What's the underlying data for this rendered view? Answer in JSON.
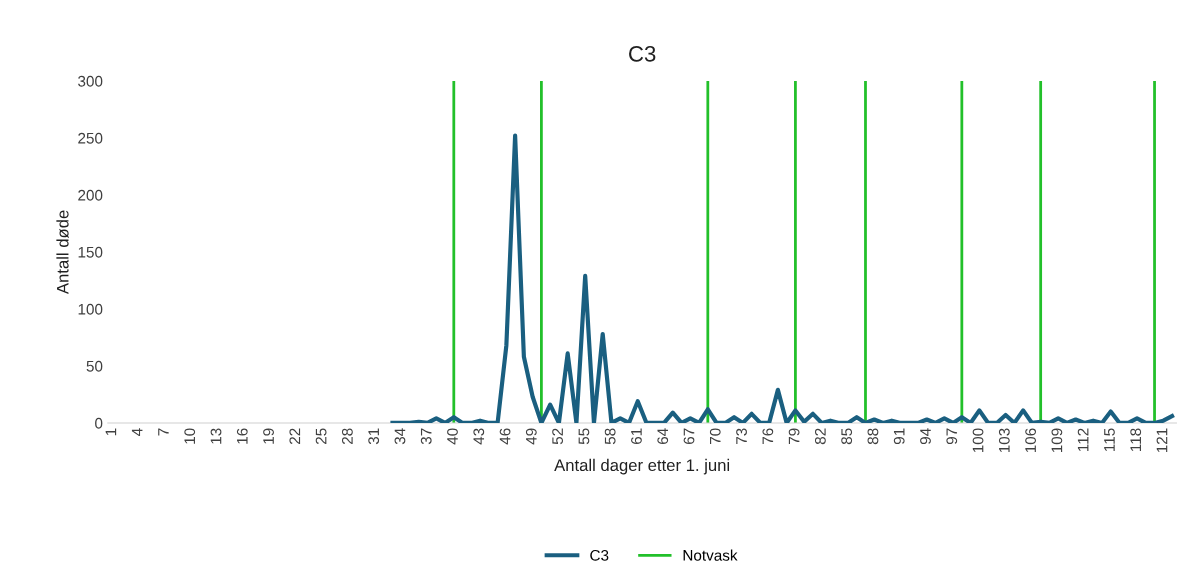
{
  "chart_data": {
    "type": "line",
    "title": "C3",
    "xlabel": "Antall dager etter 1. juni",
    "ylabel": "Antall døde",
    "xlim": [
      0.5,
      122.5
    ],
    "xticks": [
      1,
      4,
      7,
      10,
      13,
      16,
      19,
      22,
      25,
      28,
      31,
      34,
      37,
      40,
      43,
      46,
      49,
      52,
      55,
      58,
      61,
      64,
      67,
      70,
      73,
      76,
      79,
      82,
      85,
      88,
      91,
      94,
      97,
      100,
      103,
      106,
      109,
      112,
      115,
      118,
      121
    ],
    "ylim": [
      0,
      300
    ],
    "yticks": [
      0,
      50,
      100,
      150,
      200,
      250,
      300
    ],
    "series": [
      {
        "name": "C3",
        "color": "#1a5f80",
        "x": [
          33,
          34,
          35,
          36,
          37,
          38,
          39,
          40,
          41,
          42,
          43,
          44,
          45,
          46,
          47,
          48,
          49,
          50,
          51,
          52,
          53,
          54,
          55,
          56,
          57,
          58,
          59,
          60,
          61,
          62,
          63,
          64,
          65,
          66,
          67,
          68,
          69,
          70,
          71,
          72,
          73,
          74,
          75,
          76,
          77,
          78,
          79,
          80,
          81,
          82,
          83,
          84,
          85,
          86,
          87,
          88,
          89,
          90,
          91,
          92,
          93,
          94,
          95,
          96,
          97,
          98,
          99,
          100,
          101,
          102,
          103,
          104,
          105,
          106,
          107,
          108,
          109,
          110,
          111,
          112,
          113,
          114,
          115,
          116,
          117,
          118,
          119,
          120,
          121,
          122
        ],
        "values": [
          0,
          0,
          0,
          1,
          0,
          4,
          0,
          5,
          0,
          0,
          2,
          0,
          0,
          68,
          252,
          58,
          23,
          0,
          16,
          0,
          61,
          0,
          129,
          0,
          78,
          0,
          4,
          0,
          19,
          0,
          0,
          0,
          9,
          0,
          4,
          0,
          12,
          0,
          0,
          5,
          0,
          8,
          0,
          0,
          29,
          0,
          11,
          1,
          8,
          0,
          2,
          0,
          0,
          5,
          0,
          3,
          0,
          2,
          0,
          0,
          0,
          3,
          0,
          4,
          0,
          5,
          0,
          11,
          0,
          0,
          7,
          0,
          11,
          0,
          1,
          0,
          4,
          0,
          3,
          0,
          2,
          0,
          10,
          0,
          0,
          4,
          0,
          0,
          2,
          6
        ]
      }
    ],
    "ref_lines": [
      {
        "axis": "x",
        "value": 40,
        "label": "Notvask",
        "color": "#22c02a"
      },
      {
        "axis": "x",
        "value": 50,
        "color": "#22c02a"
      },
      {
        "axis": "x",
        "value": 69,
        "color": "#22c02a"
      },
      {
        "axis": "x",
        "value": 79,
        "color": "#22c02a"
      },
      {
        "axis": "x",
        "value": 87,
        "color": "#22c02a"
      },
      {
        "axis": "x",
        "value": 98,
        "color": "#22c02a"
      },
      {
        "axis": "x",
        "value": 107,
        "color": "#22c02a"
      },
      {
        "axis": "x",
        "value": 120,
        "color": "#22c02a"
      }
    ],
    "legend": "bottom",
    "grid": false
  }
}
